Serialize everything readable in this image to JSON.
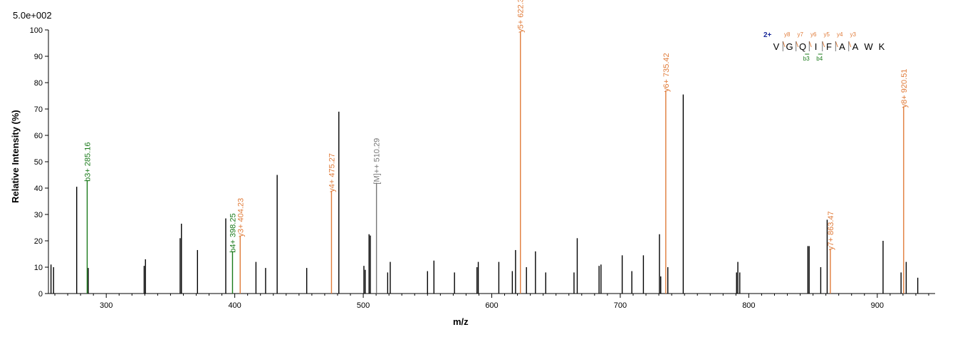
{
  "header": {
    "scale_label": "5.0e+002"
  },
  "chart_data": {
    "type": "bar",
    "subtype": "mass-spectrum",
    "xlabel": "m/z",
    "ylabel": "Relative  Intensity (%)",
    "xlim": [
      255,
      945
    ],
    "ylim": [
      0,
      100
    ],
    "x_ticks": [
      300,
      400,
      500,
      600,
      700,
      800,
      900
    ],
    "y_ticks": [
      0,
      10,
      20,
      30,
      40,
      50,
      60,
      70,
      80,
      90,
      100
    ],
    "grid": false,
    "colors": {
      "unmatched": "#000000",
      "y_ion": "#e07b39",
      "b_ion": "#1a7a1a",
      "precursor": "#777777",
      "charge": "#1a2a9a"
    },
    "peaks": [
      {
        "x": 257.0,
        "y": 11
      },
      {
        "x": 259.0,
        "y": 10
      },
      {
        "x": 277.0,
        "y": 40.5
      },
      {
        "x": 286.0,
        "y": 9.7
      },
      {
        "x": 329.5,
        "y": 10.5
      },
      {
        "x": 330.5,
        "y": 13
      },
      {
        "x": 357.5,
        "y": 21
      },
      {
        "x": 358.5,
        "y": 26.5
      },
      {
        "x": 371.0,
        "y": 16.5
      },
      {
        "x": 393.0,
        "y": 28.5
      },
      {
        "x": 416.5,
        "y": 12
      },
      {
        "x": 424.0,
        "y": 9.7
      },
      {
        "x": 433.0,
        "y": 45
      },
      {
        "x": 456.0,
        "y": 9.7
      },
      {
        "x": 481.0,
        "y": 69
      },
      {
        "x": 500.5,
        "y": 10.5
      },
      {
        "x": 501.5,
        "y": 9
      },
      {
        "x": 504.5,
        "y": 22.5
      },
      {
        "x": 505.5,
        "y": 22
      },
      {
        "x": 519.0,
        "y": 8
      },
      {
        "x": 521.0,
        "y": 12
      },
      {
        "x": 550.0,
        "y": 8.5
      },
      {
        "x": 555.0,
        "y": 12.5
      },
      {
        "x": 571.0,
        "y": 8
      },
      {
        "x": 588.5,
        "y": 10
      },
      {
        "x": 589.5,
        "y": 12
      },
      {
        "x": 605.5,
        "y": 12
      },
      {
        "x": 616.0,
        "y": 8.5
      },
      {
        "x": 618.5,
        "y": 16.5
      },
      {
        "x": 627.0,
        "y": 10
      },
      {
        "x": 634.0,
        "y": 16
      },
      {
        "x": 642.0,
        "y": 8
      },
      {
        "x": 664.0,
        "y": 8
      },
      {
        "x": 666.5,
        "y": 21
      },
      {
        "x": 683.5,
        "y": 10.5
      },
      {
        "x": 685.0,
        "y": 11
      },
      {
        "x": 701.5,
        "y": 14.5
      },
      {
        "x": 709.0,
        "y": 8.5
      },
      {
        "x": 718.0,
        "y": 14.5
      },
      {
        "x": 730.5,
        "y": 22.5
      },
      {
        "x": 731.5,
        "y": 6.5
      },
      {
        "x": 737.0,
        "y": 10
      },
      {
        "x": 749.0,
        "y": 75.5
      },
      {
        "x": 790.5,
        "y": 8
      },
      {
        "x": 791.5,
        "y": 12
      },
      {
        "x": 793.0,
        "y": 8
      },
      {
        "x": 846.0,
        "y": 18
      },
      {
        "x": 847.0,
        "y": 18
      },
      {
        "x": 856.0,
        "y": 10
      },
      {
        "x": 861.0,
        "y": 28
      },
      {
        "x": 904.5,
        "y": 20
      },
      {
        "x": 918.5,
        "y": 8
      },
      {
        "x": 922.5,
        "y": 12
      },
      {
        "x": 931.5,
        "y": 6
      }
    ],
    "annotated_peaks": [
      {
        "x": 285.16,
        "y": 43,
        "label": "b3+ 285.16",
        "kind": "b_ion"
      },
      {
        "x": 398.25,
        "y": 16,
        "label": "b4+ 398.25",
        "kind": "b_ion"
      },
      {
        "x": 404.23,
        "y": 22,
        "label": "y3+ 404.23",
        "kind": "y_ion"
      },
      {
        "x": 475.27,
        "y": 39,
        "label": "y4+ 475.27",
        "kind": "y_ion"
      },
      {
        "x": 510.29,
        "y": 42,
        "label": "[M]++ 510.29",
        "kind": "precursor"
      },
      {
        "x": 622.3,
        "y": 99.5,
        "label": "y5+ 622.3",
        "kind": "y_ion"
      },
      {
        "x": 735.42,
        "y": 77,
        "label": "y6+ 735.42",
        "kind": "y_ion"
      },
      {
        "x": 863.47,
        "y": 17,
        "label": "y7+ 863.47",
        "kind": "y_ion"
      },
      {
        "x": 920.51,
        "y": 71,
        "label": "y8+ 920.51",
        "kind": "y_ion"
      }
    ],
    "sequence": {
      "charge": "2+",
      "residues": [
        "V",
        "G",
        "Q",
        "I",
        "F",
        "A",
        "A",
        "W",
        "K"
      ],
      "y_ions": [
        {
          "after": 1,
          "label": "y8"
        },
        {
          "after": 2,
          "label": "y7"
        },
        {
          "after": 3,
          "label": "y6"
        },
        {
          "after": 4,
          "label": "y5"
        },
        {
          "after": 5,
          "label": "y4"
        },
        {
          "after": 6,
          "label": "y3"
        }
      ],
      "b_ions": [
        {
          "after": 3,
          "label": "b3"
        },
        {
          "after": 4,
          "label": "b4"
        }
      ]
    }
  }
}
